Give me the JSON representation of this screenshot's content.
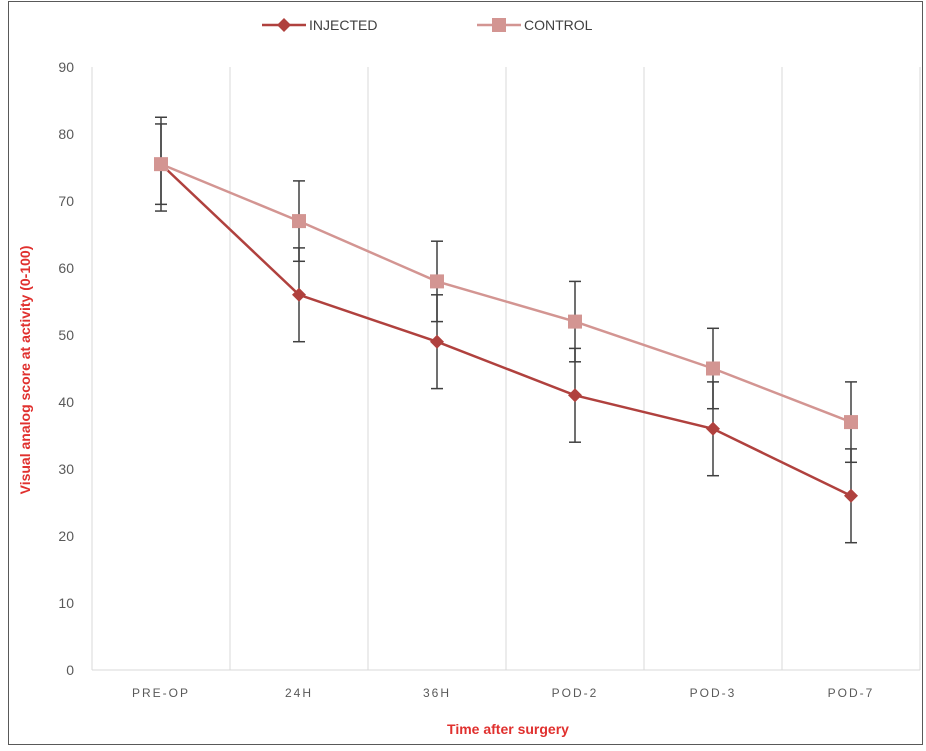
{
  "chart_data": {
    "type": "line",
    "title": "",
    "xlabel": "Time after surgery",
    "ylabel": "Visual analog score at activity (0-100)",
    "categories": [
      "PRE-OP",
      "24H",
      "36H",
      "POD-2",
      "POD-3",
      "POD-7"
    ],
    "ylim": [
      0,
      90
    ],
    "yticks": [
      0,
      10,
      20,
      30,
      40,
      50,
      60,
      70,
      80,
      90
    ],
    "grid": "vertical category separators",
    "legend_position": "top-center",
    "series": [
      {
        "name": "INJECTED",
        "marker": "diamond",
        "color": "#b0413e",
        "values": [
          75.5,
          56,
          49,
          41,
          36,
          26
        ],
        "error": [
          7,
          7,
          7,
          7,
          7,
          7
        ]
      },
      {
        "name": "CONTROL",
        "marker": "square",
        "color": "#d39592",
        "values": [
          75.5,
          67,
          58,
          52,
          45,
          37
        ],
        "error": [
          6,
          6,
          6,
          6,
          6,
          6
        ]
      }
    ],
    "colors": {
      "axis_title": "#e0302e",
      "error_bar": "#404040",
      "gridline": "#d9d9d9",
      "frame": "#595959"
    }
  }
}
